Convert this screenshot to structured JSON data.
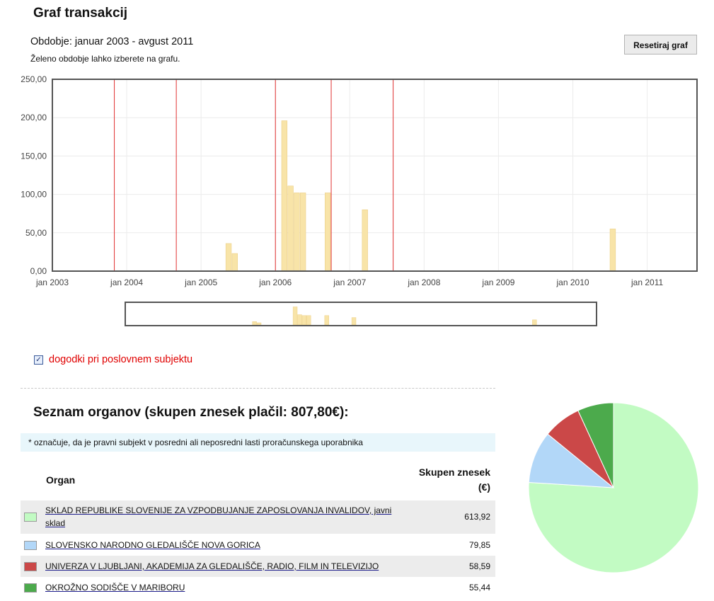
{
  "page": {
    "title": "Graf transakcij",
    "period": "Obdobje: januar 2003 - avgust 2011",
    "hint": "Želeno obdobje lahko izberete na grafu.",
    "reset_button": "Resetiraj graf",
    "events_checkbox_label": "dogodki pri poslovnem subjektu",
    "events_checked": true,
    "organs_title": "Seznam organov (skupen znesek plačil: 807,80€):",
    "note": "* označuje, da je pravni subjekt v posredni ali neposredni lasti proračunskega uporabnika",
    "table_header": {
      "organ": "Organ",
      "total_line1": "Skupen znesek",
      "total_line2": "(€)"
    }
  },
  "colors": {
    "bar": "#f8e4a8",
    "bar_stroke": "#ecd08a",
    "event_line": "#e03030",
    "row_shade": "#ececec"
  },
  "chart_data": [
    {
      "type": "bar",
      "title": "",
      "ylim": [
        0,
        250
      ],
      "yticks": [
        0,
        50,
        100,
        150,
        200,
        250
      ],
      "ytick_labels": [
        "0,00",
        "50,00",
        "100,00",
        "150,00",
        "200,00",
        "250,00"
      ],
      "xlim": [
        2003.0,
        2011.67
      ],
      "xticks": [
        2003,
        2004,
        2005,
        2006,
        2007,
        2008,
        2009,
        2010,
        2011
      ],
      "xtick_labels": [
        "jan 2003",
        "jan 2004",
        "jan 2005",
        "jan 2006",
        "jan 2007",
        "jan 2008",
        "jan 2009",
        "jan 2010",
        "jan 2011"
      ],
      "grid": true,
      "bars": [
        {
          "x": "2005-05",
          "value": 36
        },
        {
          "x": "2005-06",
          "value": 23
        },
        {
          "x": "2006-02",
          "value": 196
        },
        {
          "x": "2006-03",
          "value": 111
        },
        {
          "x": "2006-04",
          "value": 102
        },
        {
          "x": "2006-05",
          "value": 102
        },
        {
          "x": "2006-09",
          "value": 102
        },
        {
          "x": "2007-03",
          "value": 80
        },
        {
          "x": "2010-07",
          "value": 55
        }
      ],
      "event_lines": [
        "2003-11",
        "2004-09",
        "2006-01",
        "2006-10",
        "2007-08"
      ]
    },
    {
      "type": "pie",
      "title": "",
      "slices": [
        {
          "label": "SKLAD REPUBLIKE SLOVENIJE ZA VZPODBUJANJE ZAPOSLOVANJA INVALIDOV, javni sklad",
          "value": 613.92,
          "color": "#c2fbc3"
        },
        {
          "label": "SLOVENSKO NARODNO GLEDALIŠČE NOVA GORICA",
          "value": 79.85,
          "color": "#b2d7f8"
        },
        {
          "label": "UNIVERZA V LJUBLJANI, AKADEMIJA ZA GLEDALIŠČE, RADIO, FILM IN TELEVIZIJO",
          "value": 58.59,
          "color": "#cb4848"
        },
        {
          "label": "OKROŽNO SODIŠČE V MARIBORU",
          "value": 55.44,
          "color": "#4caa4c"
        }
      ]
    }
  ],
  "organs": [
    {
      "name": "SKLAD REPUBLIKE SLOVENIJE ZA VZPODBUJANJE ZAPOSLOVANJA INVALIDOV, javni sklad",
      "amount": "613,92",
      "color": "#c2fbc3"
    },
    {
      "name": "SLOVENSKO NARODNO GLEDALIŠČE NOVA GORICA",
      "amount": "79,85",
      "color": "#b2d7f8"
    },
    {
      "name": "UNIVERZA V LJUBLJANI, AKADEMIJA ZA GLEDALIŠČE, RADIO, FILM IN TELEVIZIJO",
      "amount": "58,59",
      "color": "#cb4848"
    },
    {
      "name": "OKROŽNO SODIŠČE V MARIBORU",
      "amount": "55,44",
      "color": "#4caa4c"
    }
  ]
}
